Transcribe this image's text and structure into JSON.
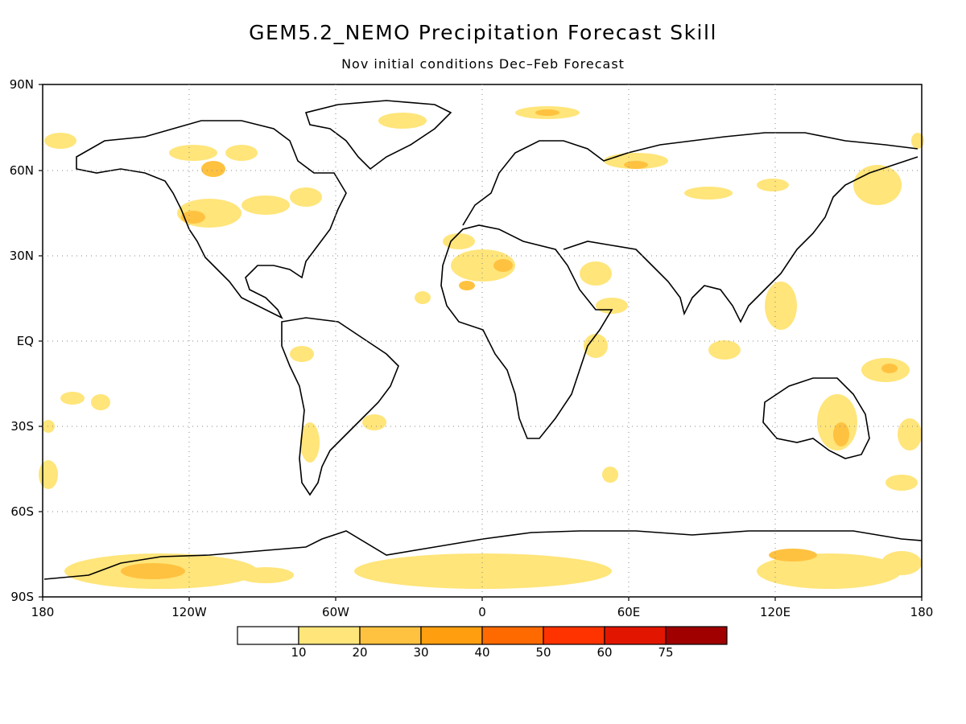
{
  "title": "GEM5.2_NEMO Precipitation Forecast Skill",
  "subtitle": "Nov initial conditions   Dec–Feb Forecast",
  "lat_labels": [
    "90N",
    "60N",
    "30N",
    "EQ",
    "30S",
    "60S",
    "90S"
  ],
  "lon_labels": [
    "180",
    "120W",
    "60W",
    "0",
    "60E",
    "120E",
    "180"
  ],
  "colorbar": {
    "thresholds": [
      "10",
      "20",
      "30",
      "40",
      "50",
      "60",
      "75"
    ],
    "colors": [
      "#ffffff",
      "#ffe57a",
      "#ffc240",
      "#ff9f10",
      "#ff6a00",
      "#ff3300",
      "#e21600",
      "#a00000"
    ]
  }
}
